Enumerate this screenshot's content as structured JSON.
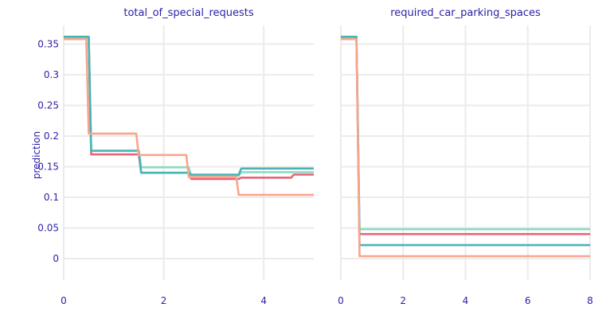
{
  "chart_data": {
    "type": "line",
    "ylabel": "prediction",
    "ylim": [
      -0.035,
      0.37
    ],
    "yticks": [
      0,
      0.05,
      0.1,
      0.15,
      0.2,
      0.25,
      0.3,
      0.35
    ],
    "ytick_labels": [
      "0",
      "0.05",
      "0.1",
      "0.15",
      "0.2",
      "0.25",
      "0.3",
      "0.35"
    ],
    "grid": true,
    "series_colors": [
      "#e8647a",
      "#8bdcbe",
      "#4ab3b7",
      "#f9a58b"
    ],
    "panels": [
      {
        "title": "total_of_special_requests",
        "xlim": [
          0,
          5
        ],
        "xticks": [
          0,
          2,
          4
        ],
        "xtick_labels": [
          "0",
          "2",
          "4"
        ],
        "series": [
          {
            "points": [
              [
                0,
                0.36
              ],
              [
                0.5,
                0.36
              ],
              [
                0.55,
                0.17
              ],
              [
                1.5,
                0.17
              ],
              [
                1.55,
                0.14
              ],
              [
                2.5,
                0.14
              ],
              [
                2.55,
                0.13
              ],
              [
                3.5,
                0.13
              ],
              [
                3.55,
                0.132
              ],
              [
                4.55,
                0.132
              ],
              [
                4.6,
                0.137
              ],
              [
                5,
                0.137
              ]
            ]
          },
          {
            "points": [
              [
                0,
                0.36
              ],
              [
                0.5,
                0.36
              ],
              [
                0.55,
                0.176
              ],
              [
                1.5,
                0.176
              ],
              [
                1.55,
                0.149
              ],
              [
                2.5,
                0.149
              ],
              [
                2.55,
                0.135
              ],
              [
                3.5,
                0.135
              ],
              [
                3.55,
                0.141
              ],
              [
                5,
                0.141
              ]
            ]
          },
          {
            "points": [
              [
                0,
                0.362
              ],
              [
                0.5,
                0.362
              ],
              [
                0.55,
                0.176
              ],
              [
                1.5,
                0.176
              ],
              [
                1.55,
                0.14
              ],
              [
                2.5,
                0.14
              ],
              [
                2.55,
                0.137
              ],
              [
                3.5,
                0.137
              ],
              [
                3.55,
                0.147
              ],
              [
                5,
                0.147
              ]
            ]
          },
          {
            "points": [
              [
                0,
                0.358
              ],
              [
                0.45,
                0.358
              ],
              [
                0.5,
                0.204
              ],
              [
                1.45,
                0.204
              ],
              [
                1.5,
                0.169
              ],
              [
                2.45,
                0.169
              ],
              [
                2.5,
                0.133
              ],
              [
                3.45,
                0.133
              ],
              [
                3.5,
                0.104
              ],
              [
                5,
                0.104
              ]
            ]
          }
        ]
      },
      {
        "title": "required_car_parking_spaces",
        "xlim": [
          0,
          8
        ],
        "xticks": [
          0,
          2,
          4,
          6,
          8
        ],
        "xtick_labels": [
          "0",
          "2",
          "4",
          "6",
          "8"
        ],
        "series": [
          {
            "points": [
              [
                0,
                0.36
              ],
              [
                0.5,
                0.36
              ],
              [
                0.6,
                0.04
              ],
              [
                8,
                0.04
              ]
            ]
          },
          {
            "points": [
              [
                0,
                0.36
              ],
              [
                0.5,
                0.36
              ],
              [
                0.6,
                0.048
              ],
              [
                8,
                0.048
              ]
            ]
          },
          {
            "points": [
              [
                0,
                0.362
              ],
              [
                0.5,
                0.362
              ],
              [
                0.6,
                0.022
              ],
              [
                8,
                0.022
              ]
            ]
          },
          {
            "points": [
              [
                0,
                0.358
              ],
              [
                0.5,
                0.358
              ],
              [
                0.6,
                0.004
              ],
              [
                8,
                0.004
              ]
            ]
          }
        ]
      }
    ]
  }
}
